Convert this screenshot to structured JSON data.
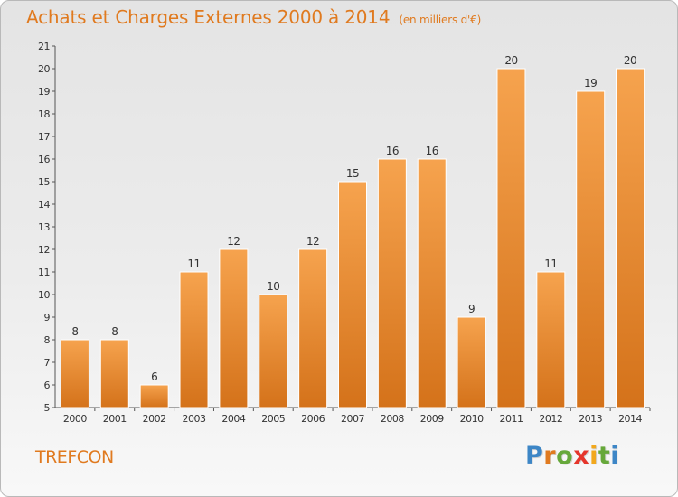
{
  "header": {
    "title": "Achats et Charges Externes 2000 à 2014",
    "unit": "(en milliers d'€)"
  },
  "footer": {
    "commune": "TREFCON",
    "logo_text": "Proxiti"
  },
  "colors": {
    "bar_top": "#f6a34e",
    "bar_bottom": "#d4721a",
    "title": "#e07a1f"
  },
  "chart_data": {
    "type": "bar",
    "title": "Achats et Charges Externes 2000 à 2014",
    "subtitle": "(en milliers d'€)",
    "xlabel": "",
    "ylabel": "",
    "categories": [
      "2000",
      "2001",
      "2002",
      "2003",
      "2004",
      "2005",
      "2006",
      "2007",
      "2008",
      "2009",
      "2010",
      "2011",
      "2012",
      "2013",
      "2014"
    ],
    "values": [
      8,
      8,
      6,
      11,
      12,
      10,
      12,
      15,
      16,
      16,
      9,
      20,
      11,
      19,
      20
    ],
    "ylim": [
      5,
      21
    ],
    "yticks": [
      5,
      6,
      7,
      8,
      9,
      10,
      11,
      12,
      13,
      14,
      15,
      16,
      17,
      18,
      19,
      20,
      21
    ],
    "grid": false,
    "legend": "none",
    "data_labels": true
  }
}
